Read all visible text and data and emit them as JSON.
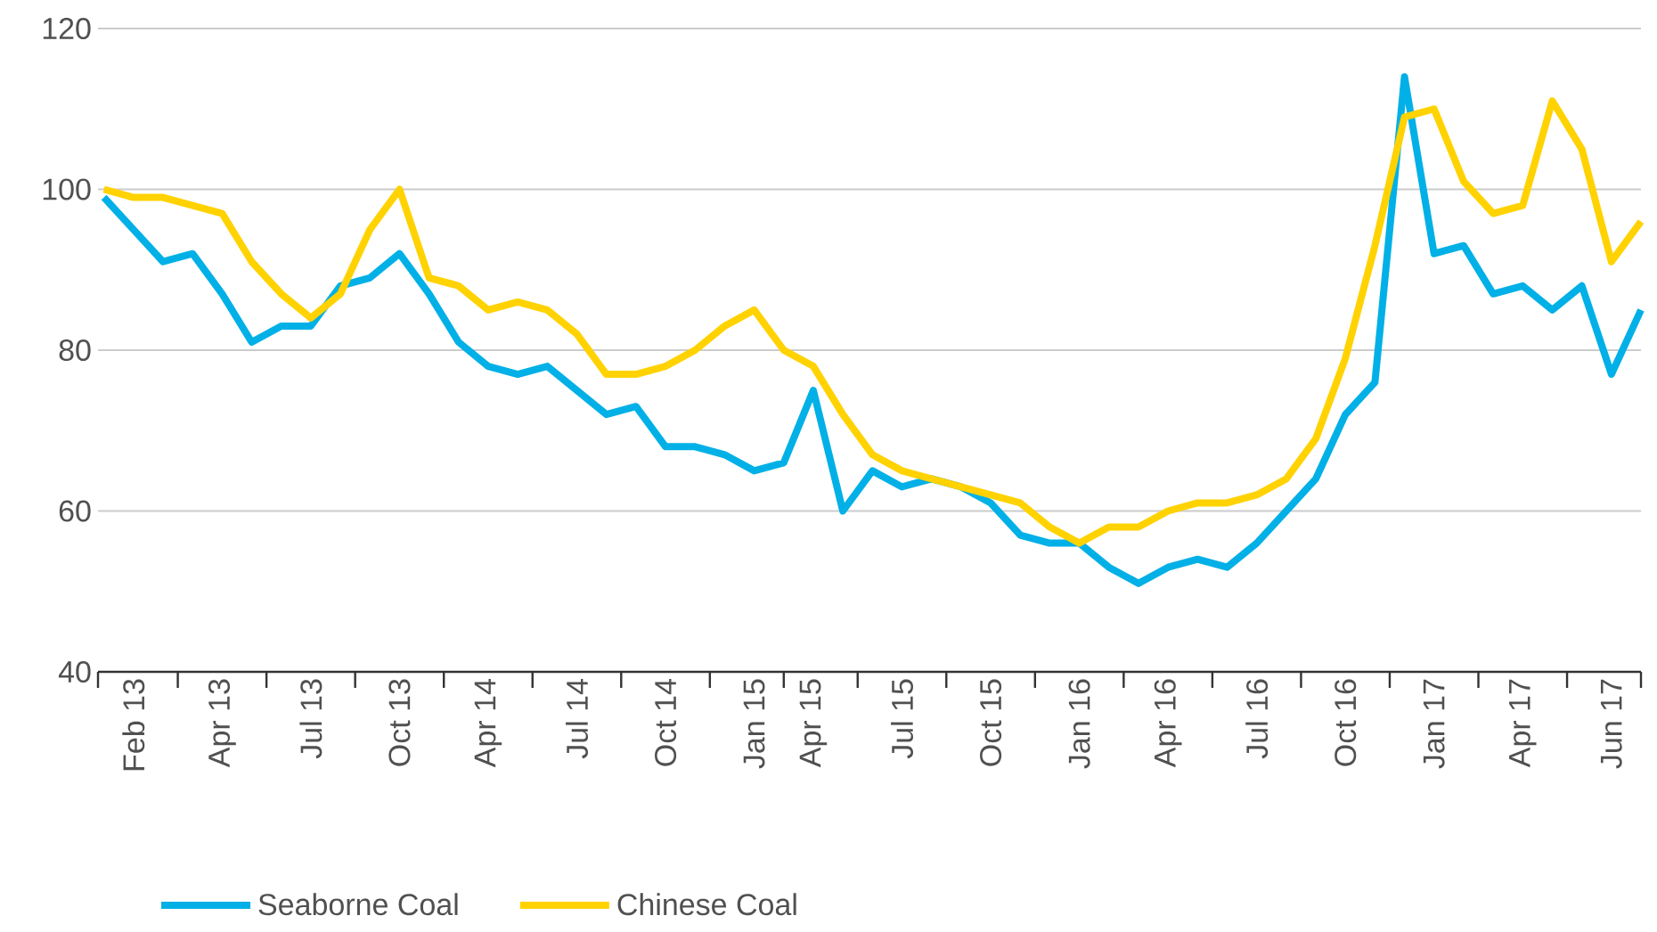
{
  "chart_data": {
    "type": "line",
    "categories": [
      null,
      "Feb 13",
      null,
      null,
      "Apr 13",
      null,
      null,
      "Jul 13",
      null,
      null,
      "Oct 13",
      null,
      null,
      "Apr 14",
      null,
      null,
      "Jul 14",
      null,
      null,
      "Oct 14",
      null,
      null,
      "Jan 15",
      null,
      "Apr 15",
      null,
      null,
      "Jul 15",
      null,
      null,
      "Oct 15",
      null,
      null,
      "Jan 16",
      null,
      null,
      "Apr 16",
      null,
      null,
      "Jul 16",
      null,
      null,
      "Oct 16",
      null,
      null,
      "Jan 17",
      null,
      null,
      "Apr 17",
      null,
      null,
      "Jun 17",
      null
    ],
    "series": [
      {
        "name": "Seaborne Coal",
        "color": "#00b0e6",
        "values": [
          99,
          95,
          91,
          92,
          87,
          81,
          83,
          83,
          88,
          89,
          92,
          87,
          81,
          78,
          77,
          78,
          75,
          72,
          73,
          68,
          68,
          67,
          65,
          66,
          75,
          60,
          65,
          63,
          64,
          63,
          61,
          57,
          56,
          56,
          53,
          51,
          53,
          54,
          53,
          56,
          60,
          64,
          72,
          76,
          114,
          92,
          93,
          87,
          88,
          85,
          88,
          77,
          85
        ]
      },
      {
        "name": "Chinese Coal",
        "color": "#ffd200",
        "values": [
          100,
          99,
          99,
          98,
          97,
          91,
          87,
          84,
          87,
          95,
          100,
          89,
          88,
          85,
          86,
          85,
          82,
          77,
          77,
          78,
          80,
          83,
          85,
          80,
          78,
          72,
          67,
          65,
          64,
          63,
          62,
          61,
          58,
          56,
          58,
          58,
          60,
          61,
          61,
          62,
          64,
          69,
          79,
          93,
          109,
          110,
          101,
          97,
          98,
          111,
          105,
          91,
          96
        ]
      }
    ],
    "ylim": [
      40,
      120
    ],
    "yticks": [
      40,
      60,
      80,
      100,
      120
    ],
    "grid": "y",
    "legend": "bottom left",
    "line_style": "solid",
    "marker": "none"
  }
}
